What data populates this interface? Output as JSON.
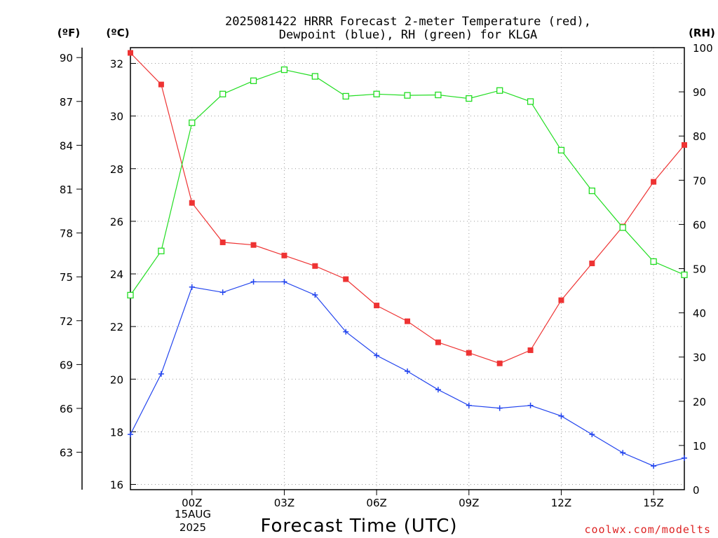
{
  "chart_data": {
    "type": "line",
    "title_line1": "2025081422 HRRR Forecast 2-meter Temperature (red),",
    "title_line2": "Dewpoint (blue), RH (green) for KLGA",
    "xlabel": "Forecast Time (UTC)",
    "credit": "coolwx.com/modelts",
    "date_label_line1": "15AUG",
    "date_label_line2": "2025",
    "x_hours": [
      -2,
      -1,
      0,
      1,
      2,
      3,
      4,
      5,
      6,
      7,
      8,
      9,
      10,
      11,
      12,
      13,
      14,
      15,
      16
    ],
    "x_tick_hours": [
      0,
      3,
      6,
      9,
      12,
      15
    ],
    "x_tick_labels": [
      "00Z",
      "03Z",
      "06Z",
      "09Z",
      "12Z",
      "15Z"
    ],
    "xlim": [
      -2,
      16
    ],
    "left_axis_c": {
      "label": "(ºC)",
      "ylim": [
        15.8,
        32.6
      ],
      "ticks": [
        16,
        18,
        20,
        22,
        24,
        26,
        28,
        30,
        32
      ]
    },
    "left_axis_f": {
      "label": "(ºF)",
      "ticks": [
        63,
        66,
        69,
        72,
        75,
        78,
        81,
        84,
        87,
        90
      ]
    },
    "right_axis_rh": {
      "label": "(RH)",
      "ylim": [
        0,
        100
      ],
      "ticks": [
        0,
        10,
        20,
        30,
        40,
        50,
        60,
        70,
        80,
        90,
        100
      ]
    },
    "grid": true,
    "series": [
      {
        "name": "Temperature",
        "color": "#ee3333",
        "marker": "filled-square",
        "axis": "celsius",
        "values": [
          32.4,
          31.2,
          26.7,
          25.2,
          25.1,
          24.7,
          24.3,
          23.8,
          22.8,
          22.2,
          21.4,
          21.0,
          20.6,
          21.1,
          23.0,
          24.4,
          25.8,
          27.5,
          28.9
        ]
      },
      {
        "name": "Dewpoint",
        "color": "#2244ee",
        "marker": "plus",
        "axis": "celsius",
        "values": [
          17.9,
          20.2,
          23.5,
          23.3,
          23.7,
          23.7,
          23.2,
          21.8,
          20.9,
          20.3,
          19.6,
          19.0,
          18.9,
          19.0,
          18.6,
          17.9,
          17.2,
          16.7,
          17.0
        ]
      },
      {
        "name": "RH",
        "color": "#22dd22",
        "marker": "open-square",
        "axis": "rh",
        "values": [
          44,
          54,
          83,
          89.5,
          92.5,
          95,
          93.5,
          89,
          89.5,
          89.2,
          89.3,
          88.5,
          90.3,
          87.8,
          76.8,
          67.6,
          59.3,
          51.6,
          48.6
        ]
      }
    ]
  }
}
